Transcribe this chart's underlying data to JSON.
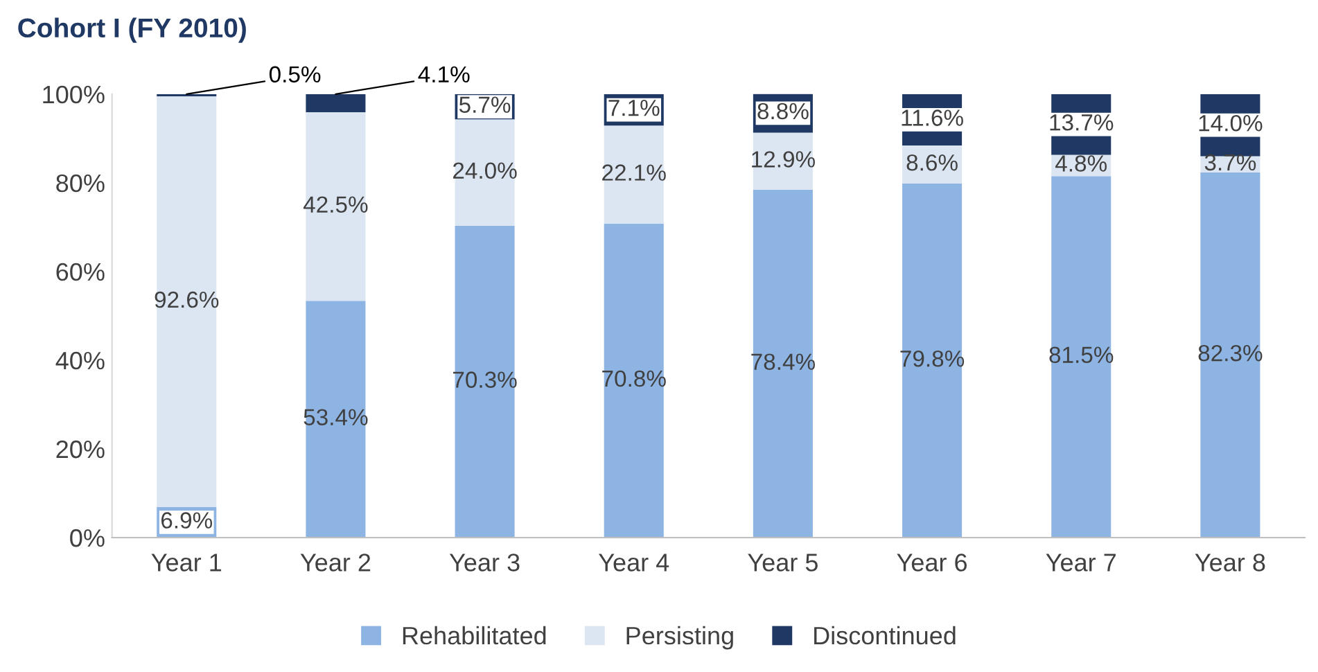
{
  "chart_data": {
    "type": "bar",
    "title": "Cohort I (FY 2010)",
    "stacked": true,
    "categories": [
      "Year 1",
      "Year 2",
      "Year 3",
      "Year 4",
      "Year 5",
      "Year 6",
      "Year 7",
      "Year 8"
    ],
    "series": [
      {
        "name": "Rehabilitated",
        "color": "#8eb4e3",
        "values": [
          6.9,
          53.4,
          70.3,
          70.8,
          78.4,
          79.8,
          81.5,
          82.3
        ],
        "value_labels": [
          "6.9%",
          "53.4%",
          "70.3%",
          "70.8%",
          "78.4%",
          "79.8%",
          "81.5%",
          "82.3%"
        ]
      },
      {
        "name": "Persisting",
        "color": "#dce6f2",
        "values": [
          92.6,
          42.5,
          24.0,
          22.1,
          12.9,
          8.6,
          4.8,
          3.7
        ],
        "value_labels": [
          "92.6%",
          "42.5%",
          "24.0%",
          "22.1%",
          "12.9%",
          "8.6%",
          "4.8%",
          "3.7%"
        ]
      },
      {
        "name": "Discontinued",
        "color": "#1f3864",
        "values": [
          0.5,
          4.1,
          5.7,
          7.1,
          8.8,
          11.6,
          13.7,
          14.0
        ],
        "value_labels": [
          "0.5%",
          "4.1%",
          "5.7%",
          "7.1%",
          "8.8%",
          "11.6%",
          "13.7%",
          "14.0%"
        ]
      }
    ],
    "ylim": [
      0,
      100
    ],
    "yticks": [
      {
        "value": 0,
        "label": "0%"
      },
      {
        "value": 20,
        "label": "20%"
      },
      {
        "value": 40,
        "label": "40%"
      },
      {
        "value": 60,
        "label": "60%"
      },
      {
        "value": 80,
        "label": "80%"
      },
      {
        "value": 100,
        "label": "100%"
      }
    ],
    "grid": false,
    "legend": "bottom"
  }
}
